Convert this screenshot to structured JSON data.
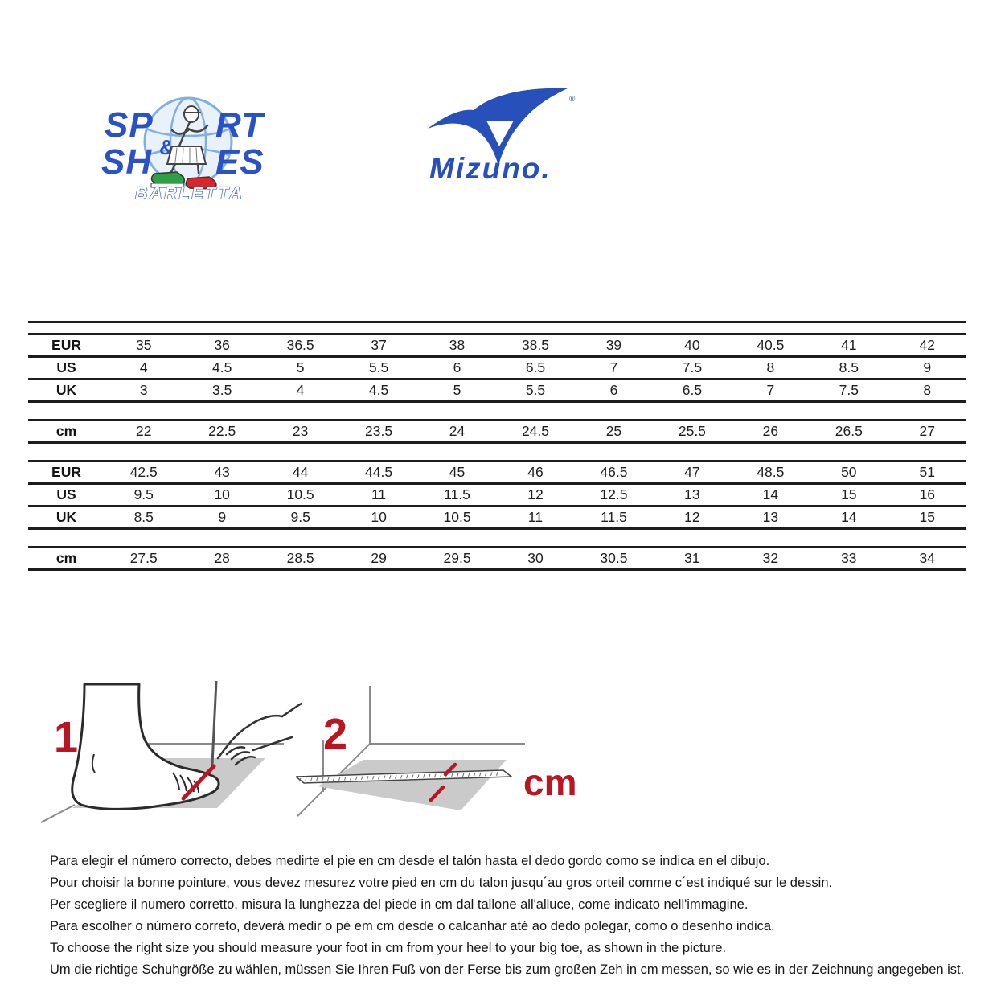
{
  "header": {
    "store_logo": {
      "line1_left": "SP",
      "line1_right": "RT",
      "ampersand": "&",
      "line2_left": "SH",
      "line2_right": "ES",
      "city": "BARLETTA"
    },
    "brand_logo": {
      "wordmark": "Mizuno.",
      "registered_mark": "®"
    }
  },
  "size_chart": {
    "sections": [
      {
        "rows": [
          {
            "label": "EUR",
            "values": [
              "35",
              "36",
              "36.5",
              "37",
              "38",
              "38.5",
              "39",
              "40",
              "40.5",
              "41",
              "42"
            ]
          },
          {
            "label": "US",
            "values": [
              "4",
              "4.5",
              "5",
              "5.5",
              "6",
              "6.5",
              "7",
              "7.5",
              "8",
              "8.5",
              "9"
            ]
          },
          {
            "label": "UK",
            "values": [
              "3",
              "3.5",
              "4",
              "4.5",
              "5",
              "5.5",
              "6",
              "6.5",
              "7",
              "7.5",
              "8"
            ]
          }
        ]
      },
      {
        "rows": [
          {
            "label": "cm",
            "values": [
              "22",
              "22.5",
              "23",
              "23.5",
              "24",
              "24.5",
              "25",
              "25.5",
              "26",
              "26.5",
              "27"
            ]
          }
        ]
      },
      {
        "rows": [
          {
            "label": "EUR",
            "values": [
              "42.5",
              "43",
              "44",
              "44.5",
              "45",
              "46",
              "46.5",
              "47",
              "48.5",
              "50",
              "51"
            ]
          },
          {
            "label": "US",
            "values": [
              "9.5",
              "10",
              "10.5",
              "11",
              "11.5",
              "12",
              "12.5",
              "13",
              "14",
              "15",
              "16"
            ]
          },
          {
            "label": "UK",
            "values": [
              "8.5",
              "9",
              "9.5",
              "10",
              "10.5",
              "11",
              "11.5",
              "12",
              "13",
              "14",
              "15"
            ]
          }
        ]
      },
      {
        "rows": [
          {
            "label": "cm",
            "values": [
              "27.5",
              "28",
              "28.5",
              "29",
              "29.5",
              "30",
              "30.5",
              "31",
              "32",
              "33",
              "34"
            ]
          }
        ]
      }
    ]
  },
  "measurement_guide": {
    "step1_label": "1",
    "step2_label": "2",
    "cm_label": "cm"
  },
  "instructions": [
    "Para elegir el número correcto, debes medirte el pie en cm desde el talón hasta el dedo gordo como se indica en el dibujo.",
    "Pour choisir la bonne pointure, vous devez mesurez votre pied en cm du talon jusqu´au gros orteil comme c´est indiqué sur le dessin.",
    "Per scegliere il numero corretto, misura la lunghezza del piede in cm dal tallone all'alluce, come indicato nell'immagine.",
    "Para escolher o número correto, deverá medir o pé em cm desde o calcanhar até ao dedo polegar, como o desenho indica.",
    "To choose the right size you should measure your foot in cm from your heel to your big toe, as shown in the picture.",
    "Um die richtige Schuhgröße zu wählen, müssen Sie Ihren Fuß von der Ferse bis zum großen Zeh in cm messen, so wie es in der Zeichnung angegeben ist."
  ],
  "colors": {
    "brand_blue": "#2a52c8",
    "mizuno_blue": "#2750bb",
    "accent_red": "#bb1522",
    "table_line": "#1c1c1c",
    "diagram_gray": "#cacaca"
  }
}
